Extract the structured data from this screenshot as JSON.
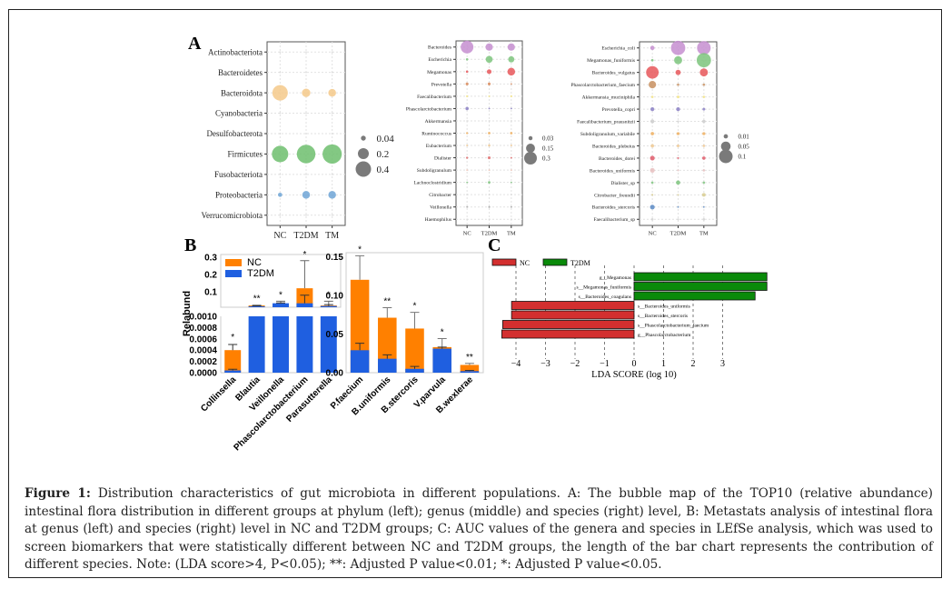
{
  "caption": {
    "label": "Figure 1:",
    "text": "Distribution characteristics of gut microbiota in different populations. A: The bubble map of the TOP10 (relative abundance) intestinal flora distribution in different groups at phylum (left); genus (middle) and species (right) level, B: Metastats analysis of intestinal flora at genus (left) and species (right) level in NC and T2DM groups; C: AUC values of the genera and species in LEfSe analysis, which was used to screen biomarkers that were statistically different between NC and T2DM groups, the length of the bar chart represents the contribution of different species. Note: (LDA score>4, P<0.05); **: Adjusted P value<0.01; *: Adjusted P value<0.05."
  },
  "panel_labels": {
    "a": "A",
    "b": "B",
    "c": "C"
  },
  "chart_data": [
    {
      "id": "A-phylum",
      "type": "scatter",
      "subtype": "bubble",
      "title": "",
      "groups": [
        "NC",
        "T2DM",
        "TM"
      ],
      "taxa": [
        "Actinobacteriota",
        "Bacteroidetes",
        "Bacteroidota",
        "Cyanobacteria",
        "Desulfobacterota",
        "Firmicutes",
        "Fusobacteriota",
        "Proteobacteria",
        "Verrucomicrobiota"
      ],
      "colors": [
        "#d9d9d9",
        "#d9d9d9",
        "#f5c98a",
        "#d9d9d9",
        "#d9d9d9",
        "#6dbe6d",
        "#d9d9d9",
        "#6fa4d6",
        "#d9d9d9"
      ],
      "values": [
        [
          0.002,
          0.002,
          0.002
        ],
        [
          0.001,
          0.001,
          0.001
        ],
        [
          0.4,
          0.12,
          0.1
        ],
        [
          0.001,
          0.001,
          0.001
        ],
        [
          0.002,
          0.002,
          0.002
        ],
        [
          0.45,
          0.58,
          0.62
        ],
        [
          0.001,
          0.001,
          0.001
        ],
        [
          0.03,
          0.1,
          0.1
        ],
        [
          0.002,
          0.002,
          0.001
        ]
      ],
      "legend": {
        "labels": [
          "0.04",
          "0.2",
          "0.4"
        ],
        "values": [
          0.04,
          0.2,
          0.4
        ],
        "position": "right"
      }
    },
    {
      "id": "A-genus",
      "type": "scatter",
      "subtype": "bubble",
      "groups": [
        "NC",
        "T2DM",
        "TM"
      ],
      "taxa": [
        "Bacteroides",
        "Escherichia",
        "Megamonas",
        "Prevotella",
        "Faecalibacterium",
        "Phascolarctobacterium",
        "Akkermansia",
        "Ruminococcus",
        "Eubacterium",
        "Dialister",
        "Subdoligranulum",
        "Lachnoclostridium",
        "Citrobacter",
        "Veillonella",
        "Haemophilus"
      ],
      "colors": [
        "#c58ed0",
        "#7cc47c",
        "#e8575a",
        "#d98a5a",
        "#f5e58a",
        "#8a7fc4",
        "#d9d9d9",
        "#f0b060",
        "#f0c890",
        "#e07070",
        "#f0c0b0",
        "#7cc47c",
        "#d9d9d9",
        "#a0a0a0",
        "#d9d9d9"
      ],
      "values": [
        [
          0.3,
          0.1,
          0.1
        ],
        [
          0.01,
          0.09,
          0.07
        ],
        [
          0.01,
          0.04,
          0.11
        ],
        [
          0.015,
          0.015,
          0.004
        ],
        [
          0.008,
          0.006,
          0.008
        ],
        [
          0.02,
          0.005,
          0.005
        ],
        [
          0.003,
          0.005,
          0.003
        ],
        [
          0.008,
          0.012,
          0.012
        ],
        [
          0.006,
          0.01,
          0.006
        ],
        [
          0.008,
          0.015,
          0.006
        ],
        [
          0.005,
          0.004,
          0.004
        ],
        [
          0.003,
          0.012,
          0.003
        ],
        [
          0.002,
          0.002,
          0.005
        ],
        [
          0.002,
          0.006,
          0.002
        ],
        [
          0.003,
          0.002,
          0.002
        ]
      ],
      "legend": {
        "labels": [
          "0.03",
          "0.15",
          "0.3"
        ],
        "values": [
          0.03,
          0.15,
          0.3
        ],
        "position": "right"
      }
    },
    {
      "id": "A-species",
      "type": "scatter",
      "subtype": "bubble",
      "groups": [
        "NC",
        "T2DM",
        "TM"
      ],
      "taxa": [
        "Escherichia_coli",
        "Megamonas_funiformis",
        "Bacteroides_vulgatus",
        "Phascolarctobacterium_faecium",
        "Akkermansia_muciniphila",
        "Prevotella_copri",
        "Faecalibacterium_prausnitzii",
        "Subdoligranulum_variabile",
        "Bacteroides_plebeius",
        "Bacteroides_dorei",
        "Bacteroides_uniformis",
        "Dialister_sp",
        "Citrobacter_freundii",
        "Bacteroides_stercoris",
        "Faecalibacterium_sp"
      ],
      "colors": [
        "#c58ed0",
        "#7cc47c",
        "#e8575a",
        "#c89060",
        "#f5e58a",
        "#8a7fc4",
        "#cccccc",
        "#f0b060",
        "#f0c890",
        "#e05a6a",
        "#e8c0c0",
        "#7cc47c",
        "#d8cc90",
        "#5a8ac4",
        "#d0d0d0"
      ],
      "values": [
        [
          0.01,
          0.11,
          0.1
        ],
        [
          0.003,
          0.035,
          0.11
        ],
        [
          0.085,
          0.015,
          0.035
        ],
        [
          0.03,
          0.003,
          0.003
        ],
        [
          0.003,
          0.004,
          0.003
        ],
        [
          0.008,
          0.008,
          0.004
        ],
        [
          0.008,
          0.002,
          0.006
        ],
        [
          0.006,
          0.005,
          0.005
        ],
        [
          0.006,
          0.004,
          0.003
        ],
        [
          0.012,
          0.002,
          0.006
        ],
        [
          0.012,
          0.002,
          0.003
        ],
        [
          0.003,
          0.01,
          0.003
        ],
        [
          0.002,
          0.001,
          0.007
        ],
        [
          0.012,
          0.001,
          0.001
        ],
        [
          0.003,
          0.002,
          0.003
        ]
      ],
      "legend": {
        "labels": [
          "0.01",
          "0.05",
          "0.1"
        ],
        "values": [
          0.01,
          0.05,
          0.1
        ],
        "position": "right"
      }
    },
    {
      "id": "B-genus",
      "type": "bar",
      "subtype": "overlaid-with-broken-axis",
      "ylabel": "Relabund",
      "categories": [
        "Collinsella",
        "Blautia",
        "Veillonella",
        "Phascolarctobacterium",
        "Parasutterella"
      ],
      "series": [
        {
          "name": "NC",
          "color": "#ff8000",
          "values": [
            0.0004,
            0.02,
            0.03,
            0.12,
            0.02
          ],
          "err": [
            0.0005,
            0.022,
            0.045,
            0.28,
            0.045
          ]
        },
        {
          "name": "T2DM",
          "color": "#1f5fe0",
          "values": [
            4e-05,
            0.015,
            0.033,
            0.033,
            0.017
          ],
          "err": [
            6e-05,
            0.018,
            0.035,
            0.08,
            0.025
          ]
        }
      ],
      "significance": [
        "*",
        "**",
        "*",
        "*",
        "*"
      ],
      "lower_ticks": [
        "0.0000",
        "0.0002",
        "0.0004",
        "0.0006",
        "0.0008",
        "0.0010"
      ],
      "upper_ticks": [
        "0.1",
        "0.2",
        "0.3"
      ],
      "lower_ylim": [
        0,
        0.001
      ],
      "upper_ylim": [
        0.01,
        0.3
      ],
      "legend": {
        "labels": [
          "NC",
          "T2DM"
        ],
        "position": "top-left"
      }
    },
    {
      "id": "B-species",
      "type": "bar",
      "subtype": "overlaid",
      "categories": [
        "P.faecium",
        "B.uniformis",
        "B.stercoris",
        "V.parvula",
        "B.wexlerae"
      ],
      "series": [
        {
          "name": "NC",
          "color": "#ff8000",
          "values": [
            0.12,
            0.071,
            0.057,
            0.033,
            0.01
          ],
          "err": [
            0.151,
            0.084,
            0.078,
            0.044,
            0.012
          ]
        },
        {
          "name": "T2DM",
          "color": "#1f5fe0",
          "values": [
            0.029,
            0.018,
            0.005,
            0.031,
            0.002
          ],
          "err": [
            0.038,
            0.023,
            0.008,
            0.033,
            0.003
          ]
        }
      ],
      "significance": [
        "*",
        "**",
        "*",
        "*",
        "**"
      ],
      "yticks": [
        "0.00",
        "0.05",
        "0.10",
        "0.15"
      ],
      "ylim": [
        0,
        0.155
      ]
    },
    {
      "id": "C-lefse",
      "type": "bar",
      "subtype": "horizontal-diverging",
      "xlabel": "LDA SCORE (log 10)",
      "xticks": [
        -4,
        -3,
        -2,
        -1,
        0,
        1,
        2,
        3
      ],
      "xlim": [
        -4.5,
        3.6
      ],
      "legend": {
        "labels": [
          "NC",
          "T2DM"
        ],
        "colors": [
          "#d32f2f",
          "#0a8a0a"
        ],
        "position": "top-left"
      },
      "categories": [
        "g__Megamonas",
        "s__Megamonas_funiformis",
        "s__Bacteroides_coagulans",
        "s__Bacteroides_uniformis",
        "s__Bacteroides_stercoris",
        "s__Phascolarctobacterium_faecium",
        "g__Phascolarctobacterium"
      ],
      "values": [
        4.5,
        4.5,
        4.1,
        -4.15,
        -4.15,
        -4.45,
        -4.48
      ],
      "group": [
        "T2DM",
        "T2DM",
        "T2DM",
        "NC",
        "NC",
        "NC",
        "NC"
      ]
    }
  ]
}
